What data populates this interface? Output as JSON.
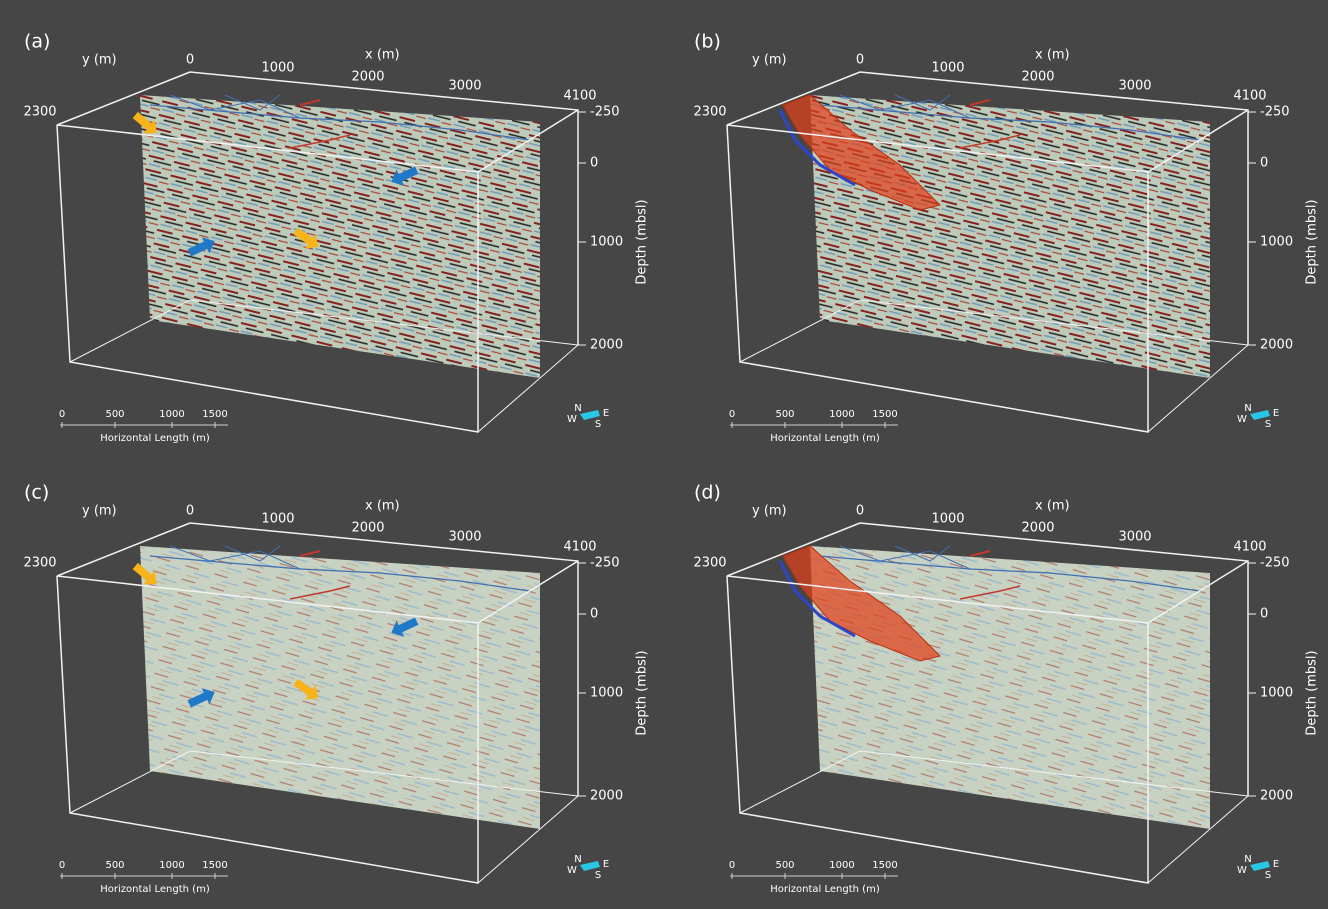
{
  "panels": [
    {
      "label": "(a)",
      "x_axis_title": "x (m)",
      "y_axis_title": "y (m)",
      "x_ticks": [
        0,
        1000,
        2000,
        3000,
        4100
      ],
      "y_ticks": [
        2300
      ],
      "depth_ticks": [
        -250,
        0,
        1000,
        2000
      ],
      "depth_axis_title": "Depth (mbsl)",
      "scale_ticks": [
        0,
        500,
        1000,
        1500
      ],
      "scale_title": "Horizontal Length (m)",
      "compass": [
        "N",
        "W",
        "E",
        "S"
      ]
    },
    {
      "label": "(b)",
      "x_axis_title": "x (m)",
      "y_axis_title": "y (m)",
      "x_ticks": [
        0,
        1000,
        2000,
        3000,
        4100
      ],
      "y_ticks": [
        2300
      ],
      "depth_ticks": [
        -250,
        0,
        1000,
        2000
      ],
      "depth_axis_title": "Depth (mbsl)",
      "scale_ticks": [
        0,
        500,
        1000,
        1500
      ],
      "scale_title": "Horizontal Length (m)",
      "compass": [
        "N",
        "W",
        "E",
        "S"
      ]
    },
    {
      "label": "(c)",
      "x_axis_title": "x (m)",
      "y_axis_title": "y (m)",
      "x_ticks": [
        0,
        1000,
        2000,
        3000,
        4100
      ],
      "y_ticks": [
        2300
      ],
      "depth_ticks": [
        -250,
        0,
        1000,
        2000
      ],
      "depth_axis_title": "Depth (mbsl)",
      "scale_ticks": [
        0,
        500,
        1000,
        1500
      ],
      "scale_title": "Horizontal Length (m)",
      "compass": [
        "N",
        "W",
        "E",
        "S"
      ]
    },
    {
      "label": "(d)",
      "x_axis_title": "x (m)",
      "y_axis_title": "y (m)",
      "x_ticks": [
        0,
        1000,
        2000,
        3000,
        4100
      ],
      "y_ticks": [
        2300
      ],
      "depth_ticks": [
        -250,
        0,
        1000,
        2000
      ],
      "depth_axis_title": "Depth (mbsl)",
      "scale_ticks": [
        0,
        500,
        1000,
        1500
      ],
      "scale_title": "Horizontal Length (m)",
      "compass": [
        "N",
        "W",
        "E",
        "S"
      ]
    }
  ]
}
